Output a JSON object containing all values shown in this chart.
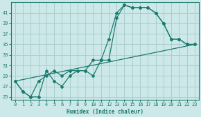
{
  "xlabel": "Humidex (Indice chaleur)",
  "bg_color": "#cce8e8",
  "grid_color": "#aacece",
  "line_color": "#1a7a6e",
  "xlim": [
    -0.5,
    23.5
  ],
  "ylim": [
    24.5,
    43
  ],
  "yticks": [
    25,
    27,
    29,
    31,
    33,
    35,
    37,
    39,
    41
  ],
  "xticks": [
    0,
    1,
    2,
    3,
    4,
    5,
    6,
    7,
    8,
    9,
    10,
    11,
    12,
    13,
    14,
    15,
    16,
    17,
    18,
    19,
    20,
    21,
    22,
    23
  ],
  "series1_x": [
    0,
    1,
    2,
    3,
    4,
    5,
    6,
    7,
    8,
    9,
    10,
    11,
    12,
    13,
    14,
    15,
    16,
    17,
    18,
    19,
    20,
    21,
    22,
    23
  ],
  "series1_y": [
    28,
    26,
    25,
    28,
    29,
    30,
    29,
    30,
    30,
    30,
    32,
    32,
    36,
    41,
    42.5,
    42,
    42,
    42,
    41,
    39,
    36,
    36,
    35,
    35
  ],
  "series2_x": [
    0,
    1,
    2,
    3,
    4,
    5,
    6,
    7,
    8,
    9,
    10,
    11,
    12,
    13,
    14,
    15,
    16,
    17,
    18,
    19,
    20,
    21,
    22,
    23
  ],
  "series2_y": [
    28,
    26,
    25,
    25,
    30,
    28,
    27,
    29,
    30,
    30,
    29,
    32,
    32,
    40,
    42.5,
    42,
    42,
    42,
    41,
    39,
    36,
    36,
    35,
    35
  ],
  "series3_x": [
    0,
    23
  ],
  "series3_y": [
    28,
    35
  ]
}
